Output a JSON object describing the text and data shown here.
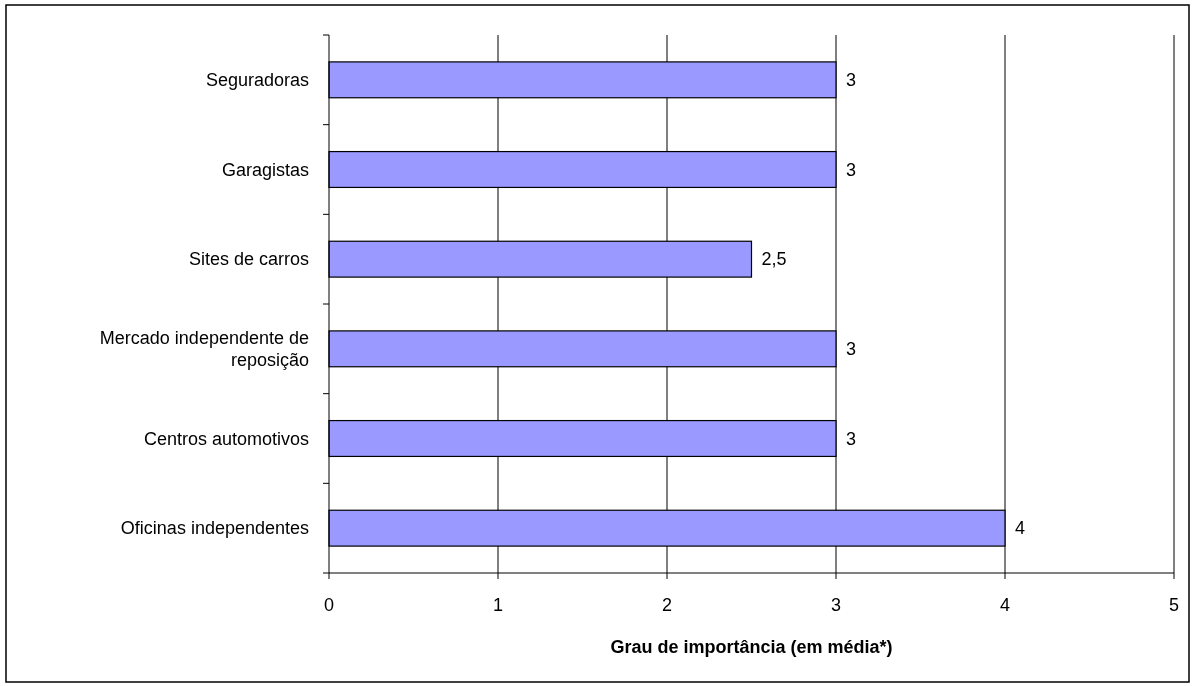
{
  "chart_data": {
    "type": "bar",
    "orientation": "horizontal",
    "xlabel": "Grau de importância (em média*)",
    "categories": [
      "Seguradoras",
      "Garagistas",
      "Sites de carros",
      "Mercado independente de reposição",
      "Centros automotivos",
      "Oficinas independentes"
    ],
    "values": [
      3,
      3,
      2.5,
      3,
      3,
      4
    ],
    "value_labels": [
      "3",
      "3",
      "2,5",
      "3",
      "3",
      "4"
    ],
    "color": "#9999ff",
    "xlim": [
      0,
      5
    ],
    "xticks": [
      0,
      1,
      2,
      3,
      4,
      5
    ],
    "grid": "x"
  }
}
